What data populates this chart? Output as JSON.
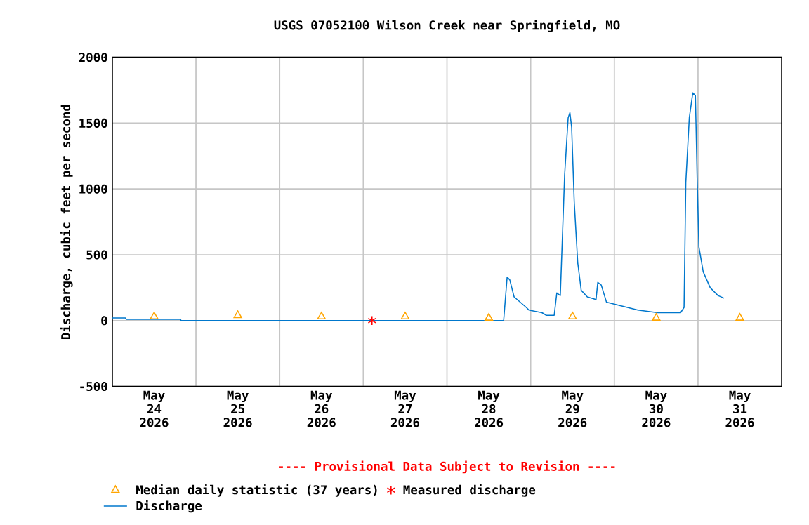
{
  "chart_data": {
    "type": "line",
    "title": "USGS 07052100 Wilson Creek near Springfield, MO",
    "ylabel": "Discharge, cubic feet per second",
    "annotations": [
      "---- Provisional Data Subject to Revision ----"
    ],
    "xlim": [
      "2026-05-24T00:00",
      "2026-06-01T00:00"
    ],
    "xticks": [
      {
        "value": "2026-05-25T00:00",
        "label": null
      },
      {
        "value": "2026-05-26T00:00",
        "label": null
      },
      {
        "value": "2026-05-27T00:00",
        "label": null
      },
      {
        "value": "2026-05-28T00:00",
        "label": null
      },
      {
        "value": "2026-05-29T00:00",
        "label": null
      },
      {
        "value": "2026-05-30T00:00",
        "label": null
      },
      {
        "value": "2026-05-31T00:00",
        "label": null
      },
      {
        "value": "2026-05-24T12:00",
        "label": "May 24 2026"
      },
      {
        "value": "2026-05-25T12:00",
        "label": "May 25 2026"
      },
      {
        "value": "2026-05-26T12:00",
        "label": "May 26 2026"
      },
      {
        "value": "2026-05-27T12:00",
        "label": "May 27 2026"
      },
      {
        "value": "2026-05-28T12:00",
        "label": "May 28 2026"
      },
      {
        "value": "2026-05-29T12:00",
        "label": "May 29 2026"
      },
      {
        "value": "2026-05-30T12:00",
        "label": "May 30 2026"
      },
      {
        "value": "2026-05-31T12:00",
        "label": "May 31 2026"
      }
    ],
    "ylim": [
      -500,
      2000
    ],
    "yticks": [
      -500,
      0,
      500,
      1000,
      1500,
      2000
    ],
    "grid": true,
    "legend": "bottom",
    "series": [
      {
        "name": "Median daily statistic (37 years)",
        "type": "scatter",
        "marker": "triangle",
        "color": "#ffa500",
        "x": [
          "2026-05-24T12:00",
          "2026-05-25T12:00",
          "2026-05-26T12:00",
          "2026-05-27T12:00",
          "2026-05-28T12:00",
          "2026-05-29T12:00",
          "2026-05-30T12:00",
          "2026-05-31T12:00"
        ],
        "values": [
          30,
          40,
          30,
          30,
          20,
          30,
          20,
          20
        ]
      },
      {
        "name": "Measured discharge",
        "type": "scatter",
        "marker": "cross",
        "color": "#ff0000",
        "x": [
          "2026-05-27T02:30"
        ],
        "values": [
          0
        ]
      },
      {
        "name": "Discharge",
        "marker": "none",
        "color": "#0077cc",
        "x": [
          "2026-05-24T00:00",
          "2026-05-24T03:45",
          "2026-05-24T04:00",
          "2026-05-24T19:30",
          "2026-05-24T19:45",
          "2026-05-28T16:15",
          "2026-05-28T17:15",
          "2026-05-28T18:00",
          "2026-05-28T19:15",
          "2026-05-28T22:45",
          "2026-05-28T23:30",
          "2026-05-29T03:15",
          "2026-05-29T04:30",
          "2026-05-29T06:45",
          "2026-05-29T07:30",
          "2026-05-29T08:30",
          "2026-05-29T09:45",
          "2026-05-29T10:45",
          "2026-05-29T11:15",
          "2026-05-29T11:45",
          "2026-05-29T12:30",
          "2026-05-29T13:30",
          "2026-05-29T14:30",
          "2026-05-29T16:15",
          "2026-05-29T18:45",
          "2026-05-29T19:15",
          "2026-05-29T20:15",
          "2026-05-29T21:45",
          "2026-05-30T00:45",
          "2026-05-30T06:45",
          "2026-05-30T12:30",
          "2026-05-30T19:00",
          "2026-05-30T20:00",
          "2026-05-30T20:30",
          "2026-05-30T21:30",
          "2026-05-30T22:30",
          "2026-05-30T23:15",
          "2026-05-30T23:45",
          "2026-05-31T00:15",
          "2026-05-31T01:30",
          "2026-05-31T03:30",
          "2026-05-31T05:45",
          "2026-05-31T07:30"
        ],
        "values": [
          20,
          20,
          10,
          10,
          0,
          0,
          330,
          310,
          180,
          100,
          80,
          60,
          40,
          40,
          210,
          190,
          1110,
          1540,
          1580,
          1470,
          900,
          440,
          230,
          180,
          160,
          290,
          270,
          140,
          120,
          80,
          60,
          60,
          100,
          1050,
          1540,
          1730,
          1710,
          1090,
          560,
          370,
          250,
          190,
          170
        ]
      }
    ]
  }
}
